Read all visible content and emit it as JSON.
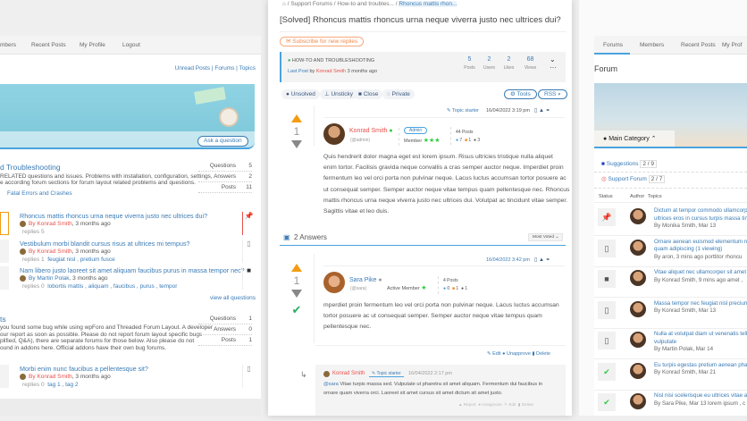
{
  "left": {
    "nav": [
      "mbers",
      "Recent Posts",
      "My Profile",
      "Logout"
    ],
    "header_links": {
      "unread": "Unread Posts",
      "forums": "Forums",
      "topics": "Topics"
    },
    "ask_button": "Ask a question",
    "forum1": {
      "title": "d Troubleshooting",
      "desc1": "RELATED questions and issues. Problems with installation, configuration, settings,",
      "desc2": "e according forum sections for forum layout related problems and questions.",
      "subforum": "Fatal Errors and Crashes",
      "stats": [
        {
          "label": "Questions",
          "value": "5"
        },
        {
          "label": "Answers",
          "value": "2"
        },
        {
          "label": "Posts",
          "value": "11"
        }
      ]
    },
    "topics": [
      {
        "title": "Rhoncus mattis rhoncus urna neque viverra justo nec ultrices dui?",
        "author": "By Konrad Smith",
        "time": ", 3 months ago",
        "replies": "replies 5",
        "tags": ""
      },
      {
        "title": "Vestibulum morbi blandit cursus risus at ultrices mi tempus?",
        "author": "By Konrad Smith",
        "time": ", 3 months ago",
        "replies": "replies 1",
        "tags": "feugiat nisl , pretium fusce"
      },
      {
        "title": "Nam libero justo laoreet sit amet aliquam faucibus purus in massa tempor nec?",
        "author": "By Martin Polak",
        "time": ", 3 months ago",
        "replies": "replies 0",
        "tags": "lobortis mattis , aliquam , faucibus , purus , tempor"
      }
    ],
    "view_all": "view all questions",
    "forum2": {
      "title": "ts",
      "desc": [
        "you found some bug while using wpForo and Threaded Forum Layout. A developer",
        "our report as soon as possible. Please do not report forum layout specific bugs",
        "plified, Q&A), there are separate forums for those below. Also please do not",
        "ound in addons here. Official addons have their own bug forums."
      ],
      "stats": [
        {
          "label": "Questions",
          "value": "1"
        },
        {
          "label": "Answers",
          "value": "0"
        },
        {
          "label": "Posts",
          "value": "1"
        }
      ]
    },
    "topic4": {
      "title": "Morbi enim nunc faucibus a pellentesque sit?",
      "author": "By Konrad Smith",
      "time": ", 3 months ago",
      "replies": "replies 0",
      "tags": "tag 1 , tag 2"
    }
  },
  "center": {
    "breadcrumb": [
      "Support Forums",
      "How-to and troubles...",
      "Rhoncus mattis rhon..."
    ],
    "title": "[Solved] Rhoncus mattis rhoncus urna neque viverra justo nec ultrices dui?",
    "subscribe": "Subscribe for new replies",
    "info": {
      "forum": "HOW-TO AND TROUBLESHOOTING",
      "last_post": "Last Post",
      "by": "by",
      "author": "Konrad Smith",
      "time": "3 months ago",
      "stats": [
        {
          "value": "5",
          "label": "Posts"
        },
        {
          "value": "2",
          "label": "Users"
        },
        {
          "value": "2",
          "label": "Likes"
        },
        {
          "value": "68",
          "label": "Views"
        }
      ]
    },
    "actions": [
      "Unsolved",
      "Unsticky",
      "Close",
      "Private"
    ],
    "tools": "Tools",
    "rss": "RSS",
    "question": {
      "topic_starter": "Topic starter",
      "date": "16/04/2022 3:19 pm",
      "votes": "1",
      "author": "Konrad Smith",
      "nick": "(@admin)",
      "badge": "Admin",
      "rank": "Member",
      "posts": "44 Posts",
      "counts": [
        "7",
        "1",
        "3"
      ],
      "lines": [
        "Quis hendrerit dolor magna eget est lorem ipsum. Risus ultricies tristique nulla aliquet",
        "enim tortor. Facilisis gravida neque convallis a cras semper auctor neque. Imperdiet proin",
        "fermentum leo vel orci porta non pulvinar neque. Lacus luctus accumsan tortor posuere ac",
        "ut consequat semper. Semper auctor neque vitae tempus quam pellentesque nec. Rhoncus",
        "mattis rhoncus urna neque viverra justo nec ultrices dui. Volutpat ac tincidunt vitae semper.",
        "Sagittis vitae et leo duis."
      ]
    },
    "answers_title": "2 Answers",
    "sort": "Most Voted",
    "answer": {
      "date": "16/04/2022 3:42 pm",
      "votes": "1",
      "author": "Sara Pike",
      "nick": "(@sara)",
      "rank": "Active Member",
      "posts": "4 Posts",
      "counts": [
        "0",
        "1",
        "1"
      ],
      "lines": [
        "mperdiet proin fermentum leo vel orci porta non pulvinar neque. Lacus luctus accumsan",
        "tortor posuere ac ut consequat semper. Semper auctor neque vitae tempus quam",
        "pellentesque nec."
      ],
      "actions": [
        "Edit",
        "Unapprove",
        "Delete"
      ]
    },
    "reply": {
      "author": "Konrad Smith",
      "badge": "Topic starter",
      "date": "16/04/2022 2:17 pm",
      "mention": "@sara",
      "line1": " Vitae turpis massa sed. Vulputate ut pharetra sit amet aliquam. Fermentum dui faucibus in",
      "line2": "ornare quam viverra orci. Laoreet sit amet cursus sit amet dictum sit amet justo.",
      "actions": [
        "Report",
        "Unapprove",
        "Edit",
        "Delete"
      ]
    }
  },
  "right": {
    "nav": [
      "Forums",
      "Members",
      "Recent Posts",
      "My Prof"
    ],
    "title": "Forum",
    "category": "Main Category",
    "subforums": [
      {
        "name": "Suggestions",
        "count": "2 / 9"
      },
      {
        "name": "Support Forum",
        "count": "2 / 7"
      }
    ],
    "headers": [
      "Status",
      "Author",
      "Topics"
    ],
    "rows": [
      {
        "l1": "Dictum at tempor commodo ullamcorpe",
        "l2": "ultrices eros in cursus turpis massa tinc",
        "by": "By Monika Smith, Mar 13",
        "status": "pin"
      },
      {
        "l1": "Ornare aenean euismod elementum nis",
        "l2": "quam adipiscing  (1 viewing)",
        "by": "By aron, 3 mins ago   porttitor rhoncu",
        "status": "doc"
      },
      {
        "l1": "Vitae aliquet nec ullamcorper sit amet r",
        "l2": "",
        "by": "By Konrad Smith, 9 mins ago   amet ,",
        "status": "lock"
      },
      {
        "l1": "Massa tempor nec feugiat nisl precium",
        "l2": "",
        "by": "By Konrad Smith, Mar 13",
        "status": "doc"
      },
      {
        "l1": "Nulla at volutpat diam ut venenatis tell",
        "l2": "vulputate",
        "by": "By Martin Polak, Mar 14",
        "status": "doc"
      },
      {
        "l1": "Eu turpis egestas pretium aenean phare",
        "l2": "",
        "by": "By Konrad Smith, Mar 21",
        "status": "check"
      },
      {
        "l1": "Nisl nisi scelerisque eu ultrices vitae auc",
        "l2": "",
        "by": "By Sara Pike, Mar 13   lorem ipsum , c",
        "status": "check"
      }
    ]
  },
  "colors": {
    "accent": "#3a7bb5",
    "author_red": "#e8504a",
    "vote_up": "#f39c12",
    "solved": "#27ae60"
  }
}
